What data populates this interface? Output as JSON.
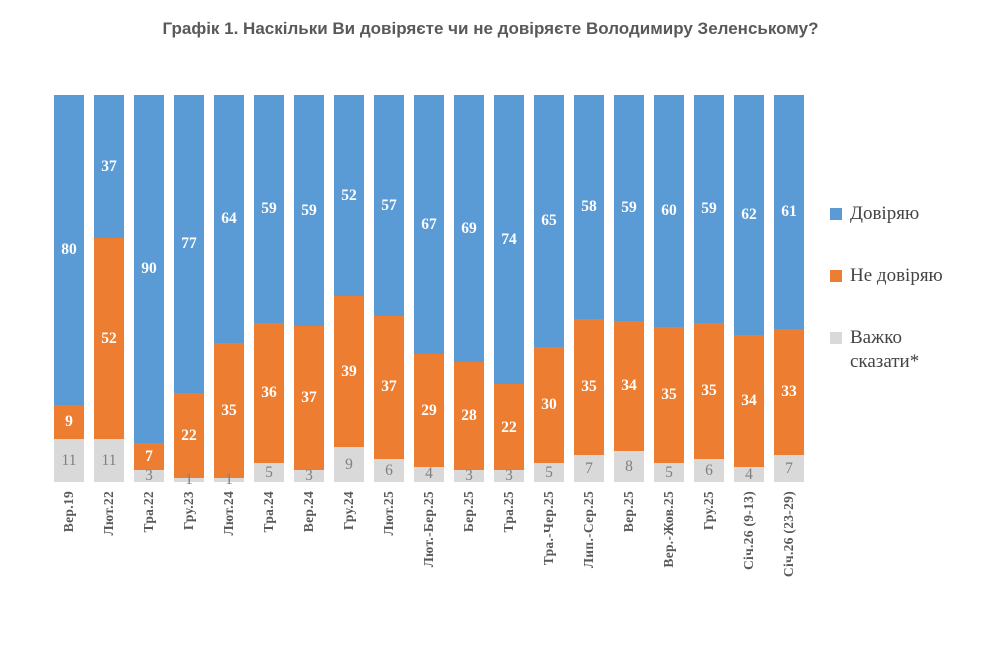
{
  "title": "Графік 1. Наскільки Ви довіряєте чи не довіряєте Володимиру Зеленському?",
  "colors": {
    "trust_blue": "#5B9BD5",
    "distrust_orange": "#ED7D31",
    "hard_to_say_gray": "#D9D9D9",
    "value_label_on_color": "#FFFFFF",
    "value_label_on_gray": "#808080",
    "axis_label": "#595959",
    "title_text": "#595959",
    "legend_text": "#444444"
  },
  "legend": {
    "items": [
      {
        "label": "Довіряю",
        "color": "#5B9BD5"
      },
      {
        "label": "Не довіряю",
        "color": "#ED7D31"
      },
      {
        "label": "Важко сказати*",
        "color": "#D9D9D9"
      }
    ]
  },
  "chart_data": {
    "type": "bar",
    "stacked": "100%",
    "orientation": "vertical",
    "title": "Графік 1. Наскільки Ви довіряєте чи не довіряєте Володимиру Зеленському?",
    "xlabel": "",
    "ylabel": "",
    "grid": false,
    "axis_lines": "none",
    "legend_position": "right",
    "categories": [
      "Вер.19",
      "Лют.22",
      "Тра.22",
      "Гру.23",
      "Лют.24",
      "Тра.24",
      "Вер.24",
      "Гру.24",
      "Лют.25",
      "Лют.-Бер.25",
      "Бер.25",
      "Тра.25",
      "Тра.-Чер.25",
      "Лип.-Сер.25",
      "Вер.25",
      "Вер.-Жов.25",
      "Гру.25",
      "Січ.26 (9-13)",
      "Січ.26 (23-29)"
    ],
    "series": [
      {
        "name": "Довіряю",
        "color": "#5B9BD5",
        "label_color": "#FFFFFF",
        "label_weight": "bold",
        "values": [
          80,
          37,
          90,
          77,
          64,
          59,
          59,
          52,
          57,
          67,
          69,
          74,
          65,
          58,
          59,
          60,
          59,
          62,
          61
        ]
      },
      {
        "name": "Не довіряю",
        "color": "#ED7D31",
        "label_color": "#FFFFFF",
        "label_weight": "bold",
        "values": [
          9,
          52,
          7,
          22,
          35,
          36,
          37,
          39,
          37,
          29,
          28,
          22,
          30,
          35,
          34,
          35,
          35,
          34,
          33
        ]
      },
      {
        "name": "Важко сказати*",
        "color": "#D9D9D9",
        "label_color": "#808080",
        "label_weight": "normal",
        "values": [
          11,
          11,
          3,
          1,
          1,
          5,
          3,
          9,
          6,
          4,
          3,
          3,
          5,
          7,
          8,
          5,
          6,
          4,
          7
        ]
      }
    ]
  }
}
